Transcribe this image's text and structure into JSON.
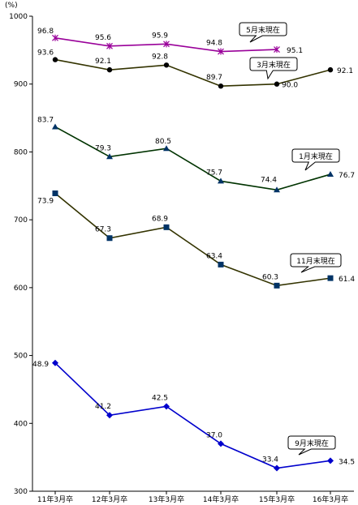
{
  "chart_data": {
    "type": "line",
    "unit_label": "(%)",
    "categories": [
      "11年3月卒",
      "12年3月卒",
      "13年3月卒",
      "14年3月卒",
      "15年3月卒",
      "16年3月卒"
    ],
    "ylim": [
      300,
      1000
    ],
    "y_ticks": [
      "300",
      "400",
      "500",
      "600",
      "700",
      "800",
      "900",
      "1000"
    ],
    "series": [
      {
        "name": "5月末現在",
        "color": "#990099",
        "marker": "star",
        "values": [
          96.8,
          95.6,
          95.9,
          94.8,
          95.1,
          null
        ],
        "labels": [
          "96.8",
          "95.6",
          "95.9",
          "94.8",
          "95.1",
          ""
        ]
      },
      {
        "name": "3月末現在",
        "color": "#333300",
        "marker": "circle",
        "values": [
          93.6,
          92.1,
          92.8,
          89.7,
          90.0,
          92.1
        ],
        "labels": [
          "93.6",
          "92.1",
          "92.8",
          "89.7",
          "90.0",
          "92.1"
        ]
      },
      {
        "name": "1月末現在",
        "color": "#003300",
        "marker": "triangle",
        "values": [
          83.7,
          79.3,
          80.5,
          75.7,
          74.4,
          76.7
        ],
        "labels": [
          "83.7",
          "79.3",
          "80.5",
          "75.7",
          "74.4",
          "76.7"
        ]
      },
      {
        "name": "11月末現在",
        "color": "#333300",
        "marker": "square",
        "values": [
          73.9,
          67.3,
          68.9,
          63.4,
          60.3,
          61.4
        ],
        "labels": [
          "73.9",
          "67.3",
          "68.9",
          "63.4",
          "60.3",
          "61.4"
        ]
      },
      {
        "name": "9月末現在",
        "color": "#0000cc",
        "marker": "diamond",
        "values": [
          48.9,
          41.2,
          42.5,
          37.0,
          33.4,
          34.5
        ],
        "labels": [
          "48.9",
          "41.2",
          "42.5",
          "37.0",
          "33.4",
          "34.5"
        ]
      }
    ],
    "legend": "callouts"
  }
}
